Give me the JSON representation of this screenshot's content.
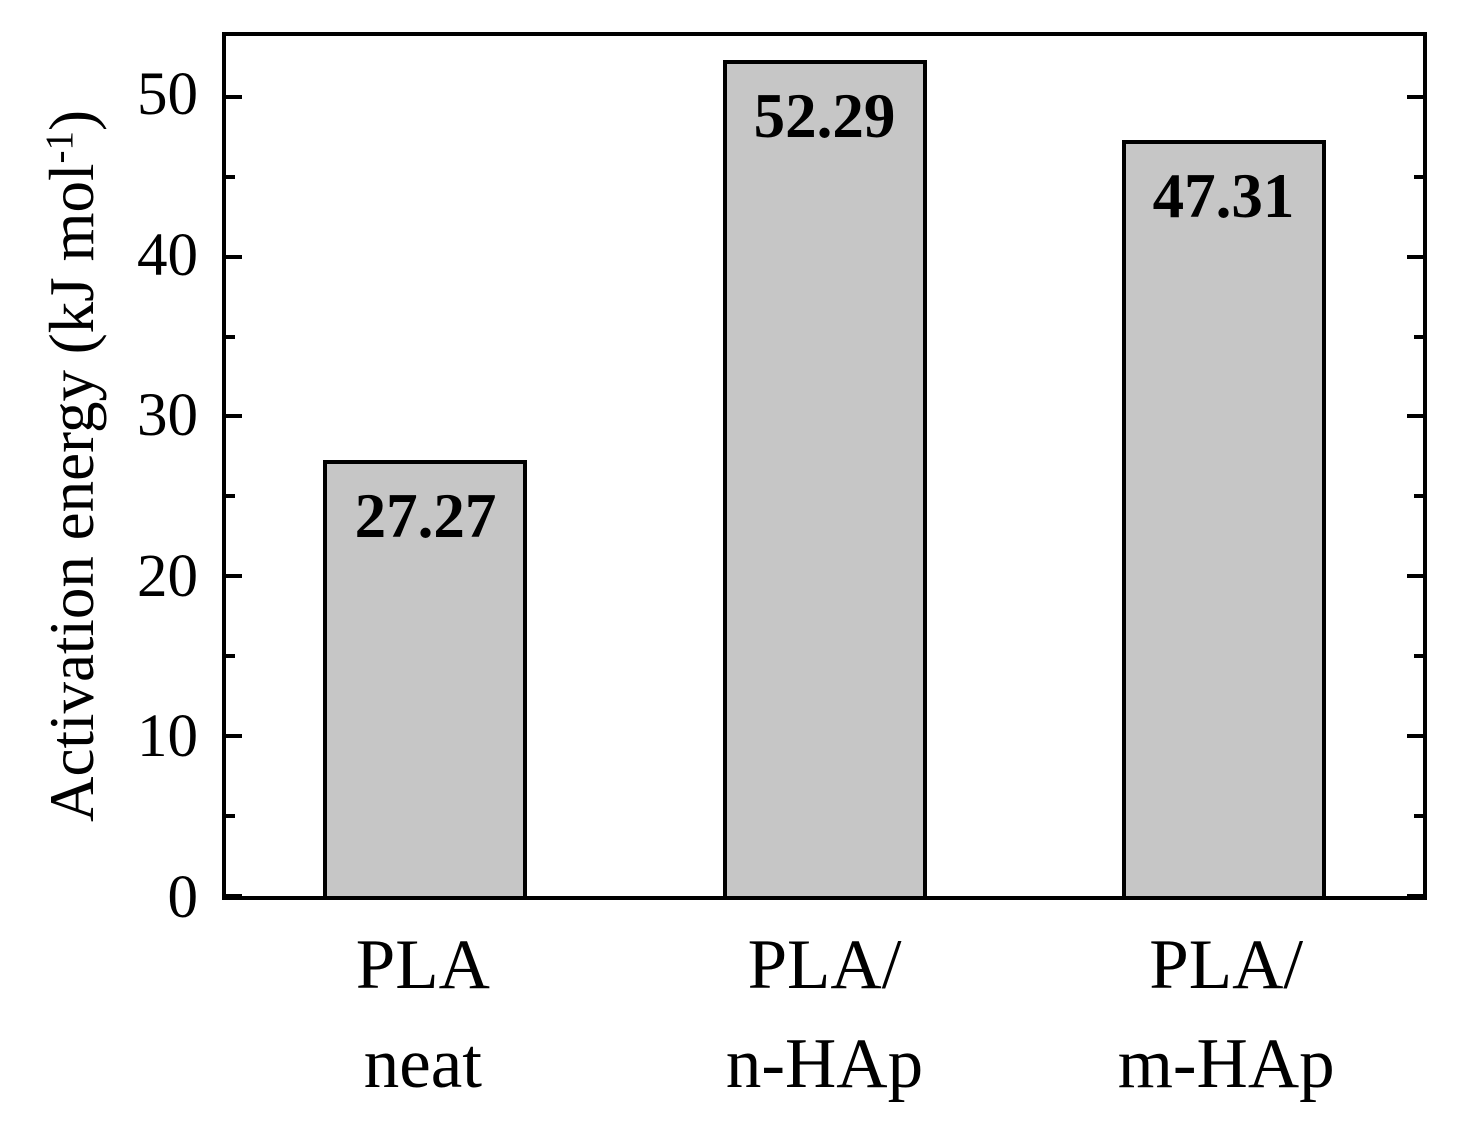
{
  "figure": {
    "background_color": "#ffffff",
    "frame_color": "#000000",
    "text_color": "#000000"
  },
  "chart_data": {
    "type": "bar",
    "title": "",
    "xlabel": "",
    "ylabel": "Activation energy (kJ mol⁻¹)",
    "ylabel_parts": {
      "prefix": "Activation energy (kJ mol",
      "superscript": "-1",
      "suffix": ")"
    },
    "categories": [
      "PLA neat",
      "PLA/ n-HAp",
      "PLA/ m-HAp"
    ],
    "categories_lines": [
      [
        "PLA",
        "neat"
      ],
      [
        "PLA/",
        "n-HAp"
      ],
      [
        "PLA/",
        "m-HAp"
      ]
    ],
    "values": [
      27.27,
      52.29,
      47.31
    ],
    "bar_labels": [
      "27.27",
      "52.29",
      "47.31"
    ],
    "ylim": [
      0,
      53.8
    ],
    "yticks_major": [
      0,
      10,
      20,
      30,
      40,
      50
    ],
    "ytick_labels": [
      "0",
      "10",
      "20",
      "30",
      "40",
      "50"
    ],
    "yticks_minor": [
      5,
      15,
      25,
      35,
      45
    ],
    "grid": false,
    "legend": false,
    "bar_fill_color": "#c6c6c6",
    "bar_border_color": "#000000"
  }
}
